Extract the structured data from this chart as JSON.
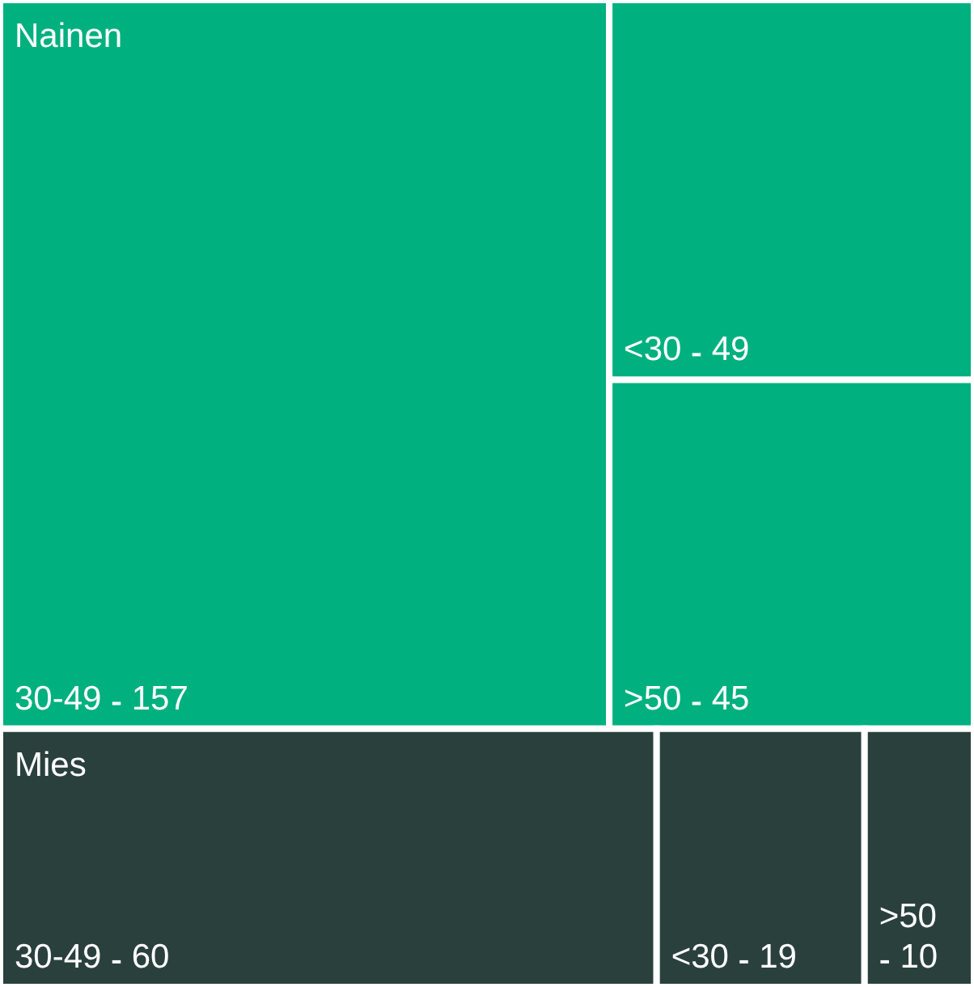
{
  "chart_data": {
    "type": "other",
    "categories": [
      "30-49",
      "<30",
      ">50"
    ],
    "data_labels": true,
    "series": [
      {
        "name": "Nainen",
        "color": "#00b07f",
        "values": [
          157,
          49,
          45
        ]
      },
      {
        "name": "Mies",
        "color": "#2a403d",
        "values": [
          60,
          19,
          10
        ]
      }
    ]
  }
}
